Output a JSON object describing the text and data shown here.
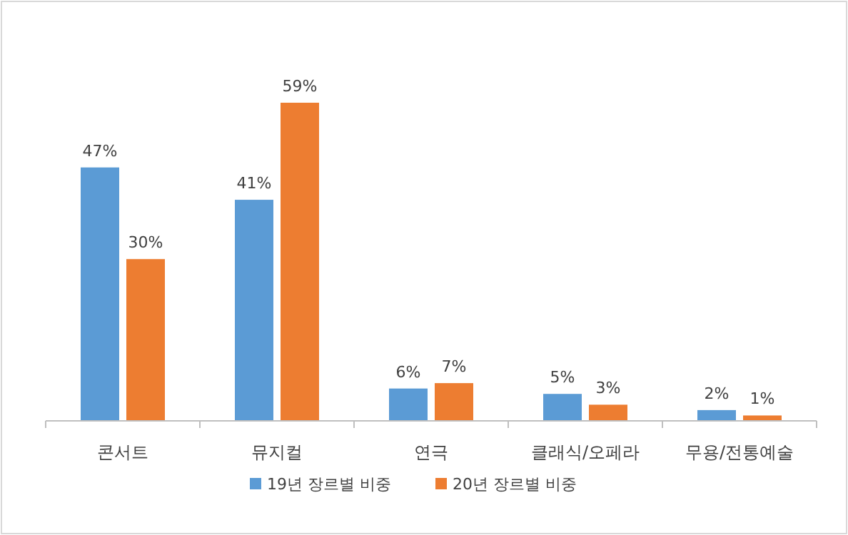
{
  "chart_data": {
    "type": "bar",
    "categories": [
      "콘서트",
      "뮤지컬",
      "연극",
      "클래식/오페라",
      "무용/전통예술"
    ],
    "series": [
      {
        "name": "19년 장르별 비중",
        "color": "#5b9bd5",
        "values": [
          47,
          41,
          6,
          5,
          2
        ],
        "value_labels": [
          "47%",
          "41%",
          "6%",
          "5%",
          "2%"
        ]
      },
      {
        "name": "20년 장르별 비중",
        "color": "#ed7d31",
        "values": [
          30,
          59,
          7,
          3,
          1
        ],
        "value_labels": [
          "30%",
          "59%",
          "7%",
          "3%",
          "1%"
        ]
      }
    ],
    "legend": "bottom",
    "grid": false
  }
}
